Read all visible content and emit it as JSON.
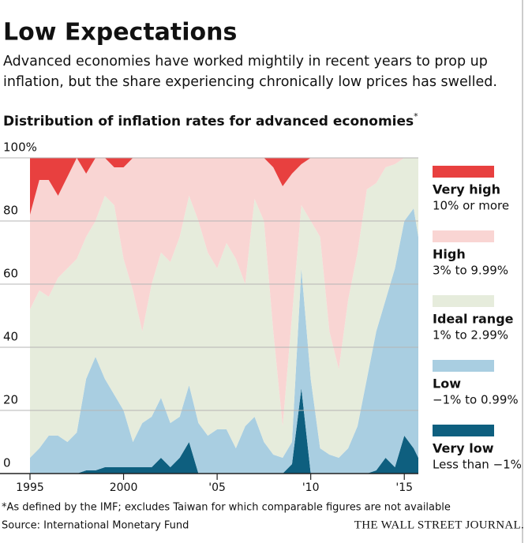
{
  "title": "Low Expectations",
  "subtitle_lines": [
    "Advanced economies have worked mightily in recent years to prop up",
    "inflation, but the share experiencing chronically low prices has swelled."
  ],
  "chart_data": {
    "type": "stacked_area",
    "title": "Distribution of inflation rates for advanced economies",
    "title_marker": "*",
    "x": [
      1995,
      1995.5,
      1996,
      1996.5,
      1997,
      1997.5,
      1998,
      1998.5,
      1999,
      1999.5,
      2000,
      2000.5,
      2001,
      2001.5,
      2002,
      2002.5,
      2003,
      2003.5,
      2004,
      2004.5,
      2005,
      2005.5,
      2006,
      2006.5,
      2007,
      2007.5,
      2008,
      2008.5,
      2009,
      2009.5,
      2010,
      2010.5,
      2011,
      2011.5,
      2012,
      2012.5,
      2013,
      2013.5,
      2014,
      2014.5,
      2015,
      2015.5,
      2015.75
    ],
    "series": [
      {
        "name": "Very low",
        "description": "Less than −1%",
        "color": "#0e5f7f",
        "values": [
          0,
          0,
          0,
          0,
          0,
          0,
          1,
          1,
          2,
          2,
          2,
          2,
          2,
          2,
          5,
          2,
          5,
          10,
          0,
          0,
          0,
          0,
          0,
          0,
          0,
          0,
          0,
          0,
          3,
          27,
          0,
          0,
          0,
          0,
          0,
          0,
          0,
          1,
          5,
          2,
          12,
          8,
          5
        ]
      },
      {
        "name": "Low",
        "description": "−1% to 0.99%",
        "color": "#a9cee1",
        "values": [
          5,
          8,
          12,
          12,
          10,
          13,
          29,
          36,
          28,
          23,
          18,
          8,
          14,
          16,
          19,
          14,
          13,
          18,
          16,
          12,
          14,
          14,
          8,
          15,
          18,
          10,
          6,
          5,
          7,
          38,
          30,
          8,
          6,
          5,
          8,
          15,
          30,
          44,
          50,
          63,
          68,
          76,
          70
        ]
      },
      {
        "name": "Ideal range",
        "description": "1% to 2.99%",
        "color": "#e6ecdc",
        "values": [
          47,
          50,
          44,
          50,
          55,
          55,
          45,
          43,
          58,
          60,
          48,
          48,
          29,
          42,
          46,
          51,
          57,
          60,
          64,
          58,
          51,
          59,
          60,
          45,
          69,
          70,
          39,
          10,
          40,
          20,
          50,
          67,
          39,
          28,
          47,
          55,
          60,
          47,
          42,
          33,
          20,
          16,
          25
        ]
      },
      {
        "name": "High",
        "description": "3% to 9.99%",
        "color": "#f9d5d3",
        "values": [
          30,
          35,
          37,
          26,
          29,
          32,
          20,
          20,
          12,
          12,
          29,
          42,
          55,
          40,
          30,
          33,
          25,
          12,
          20,
          30,
          35,
          27,
          32,
          40,
          13,
          20,
          52,
          76,
          45,
          13,
          20,
          25,
          55,
          67,
          45,
          30,
          10,
          8,
          3,
          2,
          0,
          0,
          0
        ]
      },
      {
        "name": "Very high",
        "description": "10% or more",
        "color": "#e8403f",
        "values": [
          18,
          7,
          7,
          12,
          6,
          0,
          5,
          0,
          0,
          3,
          3,
          0,
          0,
          0,
          0,
          0,
          0,
          0,
          0,
          0,
          0,
          0,
          0,
          0,
          0,
          0,
          3,
          9,
          5,
          2,
          0,
          0,
          0,
          0,
          0,
          0,
          0,
          0,
          0,
          0,
          0,
          0,
          0
        ]
      }
    ],
    "xlim": [
      1995,
      2015.75
    ],
    "xticks": [
      1995,
      2000,
      {
        "value": 2005,
        "label": "'05"
      },
      {
        "value": 2010,
        "label": "'10"
      },
      {
        "value": 2015,
        "label": "'15"
      }
    ],
    "ylim": [
      0,
      100
    ],
    "yticks": [
      0,
      20,
      40,
      60,
      80,
      {
        "value": 100,
        "label": "100%"
      }
    ],
    "grid": true,
    "legend": "right"
  },
  "footnote": "*As defined by the IMF; excludes Taiwan for which comparable figures are not available",
  "source": "Source: International Monetary Fund",
  "publisher": "THE WALL STREET JOURNAL."
}
